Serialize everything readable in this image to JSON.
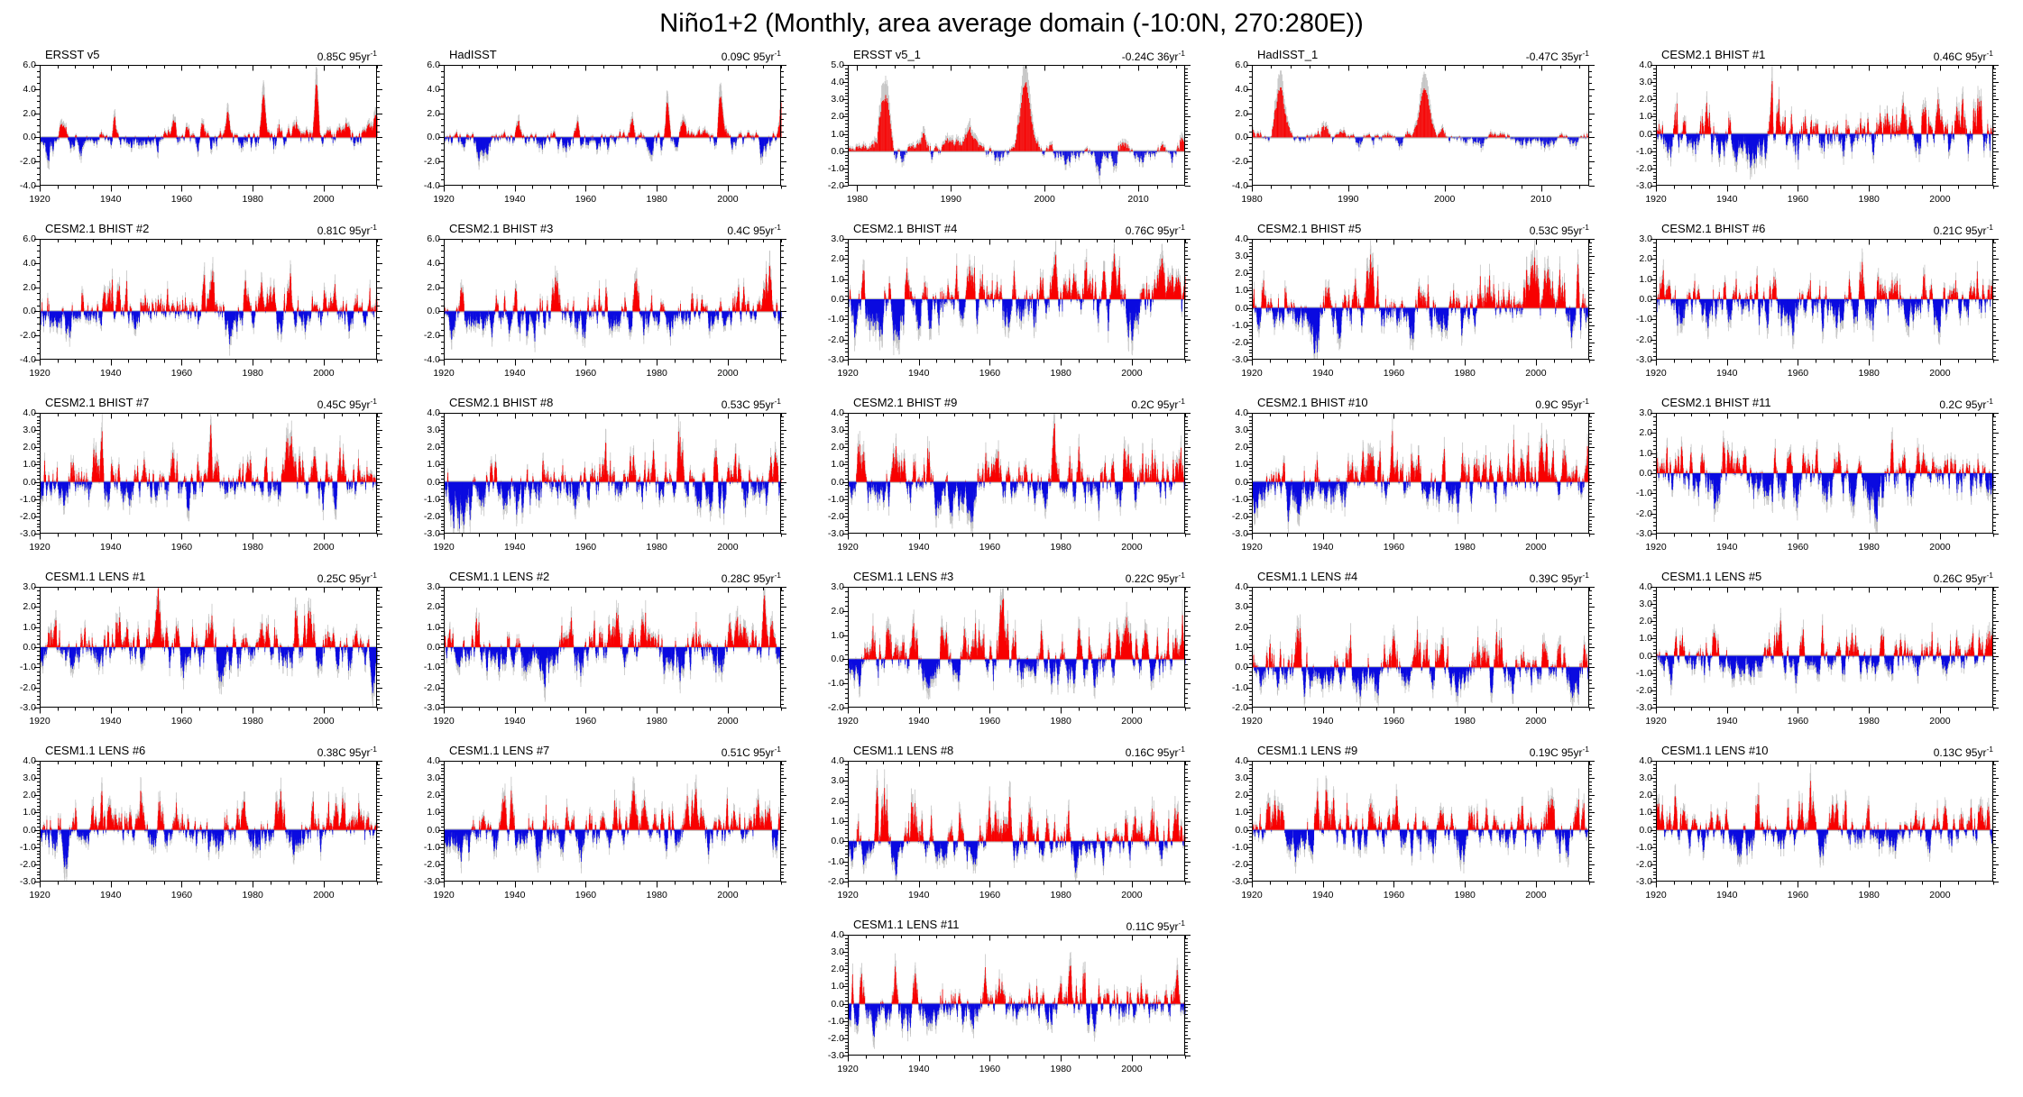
{
  "title": "Niño1+2 (Monthly, area average domain (-10:0N, 270:280E))",
  "colors": {
    "positive_anomaly": "#f80000",
    "negative_anomaly": "#0b0be0",
    "raw_monthly_envelope": "#c4c4c4",
    "zero_line": "#bdbdbd",
    "frame": "#000000",
    "text": "#000000",
    "background": "#ffffff"
  },
  "chart_data": {
    "type": "area",
    "description": "Grid of monthly SST anomaly time series (red = positive, blue = negative, gray = raw monthly envelope); linear trend printed top-right of each panel",
    "x_unit": "year",
    "y_unit": "C anomaly",
    "grid": {
      "columns": 5,
      "rows": 6,
      "last_row_panel_column": 3
    },
    "panels": [
      {
        "label": "ERSST v5",
        "trend": "0.85C 95yr",
        "trend_sup": "-1",
        "trend_value": 0.85,
        "xlim": [
          1920,
          2015
        ],
        "xticks": [
          1920,
          1940,
          1960,
          1980,
          2000
        ],
        "xminor": 5,
        "ylim": [
          -4,
          6
        ],
        "yticks": [
          6,
          4,
          2,
          0,
          -2,
          -4
        ],
        "yminor": 0.5,
        "seed": 3,
        "pos": 0.9,
        "neg": 1.7,
        "events": [
          [
            1925.9,
            1.2
          ],
          [
            1930.5,
            0.8
          ],
          [
            1941.0,
            1.9
          ],
          [
            1957.9,
            1.5
          ],
          [
            1965.9,
            1.2
          ],
          [
            1972.9,
            2.0
          ],
          [
            1976.5,
            0.9
          ],
          [
            1982.9,
            3.3
          ],
          [
            1987.3,
            1.2
          ],
          [
            1992.0,
            1.0
          ],
          [
            1997.9,
            4.0
          ],
          [
            2006.5,
            0.9
          ],
          [
            2014.9,
            2.4
          ]
        ]
      },
      {
        "label": "HadISST",
        "trend": "0.09C 95yr",
        "trend_sup": "-1",
        "trend_value": 0.09,
        "xlim": [
          1920,
          2015
        ],
        "xticks": [
          1920,
          1940,
          1960,
          1980,
          2000
        ],
        "xminor": 5,
        "ylim": [
          -4,
          6
        ],
        "yticks": [
          6,
          4,
          2,
          0,
          -2,
          -4
        ],
        "yminor": 0.5,
        "seed": 7,
        "pos": 0.9,
        "neg": 1.6,
        "events": [
          [
            1925.9,
            1.1
          ],
          [
            1941.0,
            1.6
          ],
          [
            1957.9,
            1.4
          ],
          [
            1972.9,
            1.6
          ],
          [
            1982.9,
            2.6
          ],
          [
            1987.3,
            1.1
          ],
          [
            1997.9,
            3.2
          ],
          [
            2014.9,
            3.0
          ]
        ]
      },
      {
        "label": "ERSST v5_1",
        "trend": "-0.24C 36yr",
        "trend_sup": "-1",
        "trend_value": -0.24,
        "xlim": [
          1979,
          2015
        ],
        "xticks": [
          1980,
          1990,
          2000,
          2010
        ],
        "xminor": 2,
        "ylim": [
          -2,
          5
        ],
        "yticks": [
          5,
          4,
          3,
          2,
          1,
          0,
          -1,
          -2
        ],
        "yminor": 0.2,
        "seed": 11,
        "pos": 0.8,
        "neg": 1.4,
        "events": [
          [
            1982.9,
            3.5
          ],
          [
            1987.3,
            1.1
          ],
          [
            1992.0,
            0.9
          ],
          [
            1997.9,
            3.8
          ],
          [
            2008.3,
            0.7
          ],
          [
            2014.9,
            1.3
          ]
        ]
      },
      {
        "label": "HadISST_1",
        "trend": "-0.47C 35yr",
        "trend_sup": "-1",
        "trend_value": -0.47,
        "xlim": [
          1980,
          2015
        ],
        "xticks": [
          1980,
          1990,
          2000,
          2010
        ],
        "xminor": 2,
        "ylim": [
          -4,
          6
        ],
        "yticks": [
          6,
          4,
          2,
          0,
          -2,
          -4
        ],
        "yminor": 0.5,
        "seed": 13,
        "pos": 0.9,
        "neg": 1.5,
        "events": [
          [
            1982.9,
            3.9
          ],
          [
            1987.3,
            0.9
          ],
          [
            1997.9,
            3.8
          ],
          [
            2014.9,
            0.9
          ]
        ]
      },
      {
        "label": "CESM2.1 BHIST #1",
        "trend": "0.46C 95yr",
        "trend_sup": "-1",
        "trend_value": 0.46,
        "xlim": [
          1920,
          2015
        ],
        "xticks": [
          1920,
          1940,
          1960,
          1980,
          2000
        ],
        "xminor": 5,
        "ylim": [
          -3,
          4
        ],
        "yticks": [
          4,
          3,
          2,
          1,
          0,
          -1,
          -2,
          -3
        ],
        "yminor": 0.2,
        "seed": 17,
        "pos": 2.8,
        "neg": 2.1
      },
      {
        "label": "CESM2.1 BHIST #2",
        "trend": "0.81C 95yr",
        "trend_sup": "-1",
        "trend_value": 0.81,
        "xlim": [
          1920,
          2015
        ],
        "xticks": [
          1920,
          1940,
          1960,
          1980,
          2000
        ],
        "xminor": 5,
        "ylim": [
          -4,
          6
        ],
        "yticks": [
          6,
          4,
          2,
          0,
          -2,
          -4
        ],
        "yminor": 0.5,
        "seed": 19,
        "pos": 3.6,
        "neg": 2.4
      },
      {
        "label": "CESM2.1 BHIST #3",
        "trend": "0.4C 95yr",
        "trend_sup": "-1",
        "trend_value": 0.4,
        "xlim": [
          1920,
          2015
        ],
        "xticks": [
          1920,
          1940,
          1960,
          1980,
          2000
        ],
        "xminor": 5,
        "ylim": [
          -4,
          6
        ],
        "yticks": [
          6,
          4,
          2,
          0,
          -2,
          -4
        ],
        "yminor": 0.5,
        "seed": 23,
        "pos": 3.2,
        "neg": 2.4
      },
      {
        "label": "CESM2.1 BHIST #4",
        "trend": "0.76C 95yr",
        "trend_sup": "-1",
        "trend_value": 0.76,
        "xlim": [
          1920,
          2015
        ],
        "xticks": [
          1920,
          1940,
          1960,
          1980,
          2000
        ],
        "xminor": 5,
        "ylim": [
          -3,
          3
        ],
        "yticks": [
          3,
          2,
          1,
          0,
          -1,
          -2,
          -3
        ],
        "yminor": 0.2,
        "seed": 29,
        "pos": 2.2,
        "neg": 2.2
      },
      {
        "label": "CESM2.1 BHIST #5",
        "trend": "0.53C 95yr",
        "trend_sup": "-1",
        "trend_value": 0.53,
        "xlim": [
          1920,
          2015
        ],
        "xticks": [
          1920,
          1940,
          1960,
          1980,
          2000
        ],
        "xminor": 5,
        "ylim": [
          -3,
          4
        ],
        "yticks": [
          4,
          3,
          2,
          1,
          0,
          -1,
          -2,
          -3
        ],
        "yminor": 0.2,
        "seed": 31,
        "pos": 2.9,
        "neg": 2.2
      },
      {
        "label": "CESM2.1 BHIST #6",
        "trend": "0.21C 95yr",
        "trend_sup": "-1",
        "trend_value": 0.21,
        "xlim": [
          1920,
          2015
        ],
        "xticks": [
          1920,
          1940,
          1960,
          1980,
          2000
        ],
        "xminor": 5,
        "ylim": [
          -3,
          3
        ],
        "yticks": [
          3,
          2,
          1,
          0,
          -1,
          -2,
          -3
        ],
        "yminor": 0.2,
        "seed": 37,
        "pos": 2.2,
        "neg": 1.9
      },
      {
        "label": "CESM2.1 BHIST #7",
        "trend": "0.45C 95yr",
        "trend_sup": "-1",
        "trend_value": 0.45,
        "xlim": [
          1920,
          2015
        ],
        "xticks": [
          1920,
          1940,
          1960,
          1980,
          2000
        ],
        "xminor": 5,
        "ylim": [
          -3,
          4
        ],
        "yticks": [
          4,
          3,
          2,
          1,
          0,
          -1,
          -2,
          -3
        ],
        "yminor": 0.2,
        "seed": 41,
        "pos": 2.6,
        "neg": 2.0
      },
      {
        "label": "CESM2.1 BHIST #8",
        "trend": "0.53C 95yr",
        "trend_sup": "-1",
        "trend_value": 0.53,
        "xlim": [
          1920,
          2015
        ],
        "xticks": [
          1920,
          1940,
          1960,
          1980,
          2000
        ],
        "xminor": 5,
        "ylim": [
          -3,
          4
        ],
        "yticks": [
          4,
          3,
          2,
          1,
          0,
          -1,
          -2,
          -3
        ],
        "yminor": 0.2,
        "seed": 43,
        "pos": 2.6,
        "neg": 2.3
      },
      {
        "label": "CESM2.1 BHIST #9",
        "trend": "0.2C 95yr",
        "trend_sup": "-1",
        "trend_value": 0.2,
        "xlim": [
          1920,
          2015
        ],
        "xticks": [
          1920,
          1940,
          1960,
          1980,
          2000
        ],
        "xminor": 5,
        "ylim": [
          -3,
          4
        ],
        "yticks": [
          4,
          3,
          2,
          1,
          0,
          -1,
          -2,
          -3
        ],
        "yminor": 0.2,
        "seed": 47,
        "pos": 2.8,
        "neg": 2.0
      },
      {
        "label": "CESM2.1 BHIST #10",
        "trend": "0.9C 95yr",
        "trend_sup": "-1",
        "trend_value": 0.9,
        "xlim": [
          1920,
          2015
        ],
        "xticks": [
          1920,
          1940,
          1960,
          1980,
          2000
        ],
        "xminor": 5,
        "ylim": [
          -3,
          4
        ],
        "yticks": [
          4,
          3,
          2,
          1,
          0,
          -1,
          -2,
          -3
        ],
        "yminor": 0.2,
        "seed": 53,
        "pos": 2.8,
        "neg": 2.0
      },
      {
        "label": "CESM2.1 BHIST #11",
        "trend": "0.2C 95yr",
        "trend_sup": "-1",
        "trend_value": 0.2,
        "xlim": [
          1920,
          2015
        ],
        "xticks": [
          1920,
          1940,
          1960,
          1980,
          2000
        ],
        "xminor": 5,
        "ylim": [
          -3,
          3
        ],
        "yticks": [
          3,
          2,
          1,
          0,
          -1,
          -2,
          -3
        ],
        "yminor": 0.2,
        "seed": 59,
        "pos": 2.0,
        "neg": 2.0
      },
      {
        "label": "CESM1.1 LENS #1",
        "trend": "0.25C 95yr",
        "trend_sup": "-1",
        "trend_value": 0.25,
        "xlim": [
          1920,
          2015
        ],
        "xticks": [
          1920,
          1940,
          1960,
          1980,
          2000
        ],
        "xminor": 5,
        "ylim": [
          -3,
          3
        ],
        "yticks": [
          3,
          2,
          1,
          0,
          -1,
          -2,
          -3
        ],
        "yminor": 0.2,
        "seed": 61,
        "pos": 2.2,
        "neg": 1.8
      },
      {
        "label": "CESM1.1 LENS #2",
        "trend": "0.28C 95yr",
        "trend_sup": "-1",
        "trend_value": 0.28,
        "xlim": [
          1920,
          2015
        ],
        "xticks": [
          1920,
          1940,
          1960,
          1980,
          2000
        ],
        "xminor": 5,
        "ylim": [
          -3,
          3
        ],
        "yticks": [
          3,
          2,
          1,
          0,
          -1,
          -2,
          -3
        ],
        "yminor": 0.2,
        "seed": 67,
        "pos": 2.1,
        "neg": 1.7
      },
      {
        "label": "CESM1.1 LENS #3",
        "trend": "0.22C 95yr",
        "trend_sup": "-1",
        "trend_value": 0.22,
        "xlim": [
          1920,
          2015
        ],
        "xticks": [
          1920,
          1940,
          1960,
          1980,
          2000
        ],
        "xminor": 5,
        "ylim": [
          -2,
          3
        ],
        "yticks": [
          3,
          2,
          1,
          0,
          -1,
          -2
        ],
        "yminor": 0.2,
        "seed": 71,
        "pos": 1.9,
        "neg": 1.4
      },
      {
        "label": "CESM1.1 LENS #4",
        "trend": "0.39C 95yr",
        "trend_sup": "-1",
        "trend_value": 0.39,
        "xlim": [
          1920,
          2015
        ],
        "xticks": [
          1920,
          1940,
          1960,
          1980,
          2000
        ],
        "xminor": 5,
        "ylim": [
          -2,
          4
        ],
        "yticks": [
          4,
          3,
          2,
          1,
          0,
          -1,
          -2
        ],
        "yminor": 0.2,
        "seed": 73,
        "pos": 2.6,
        "neg": 1.5
      },
      {
        "label": "CESM1.1 LENS #5",
        "trend": "0.26C 95yr",
        "trend_sup": "-1",
        "trend_value": 0.26,
        "xlim": [
          1920,
          2015
        ],
        "xticks": [
          1920,
          1940,
          1960,
          1980,
          2000
        ],
        "xminor": 5,
        "ylim": [
          -3,
          4
        ],
        "yticks": [
          4,
          3,
          2,
          1,
          0,
          -1,
          -2,
          -3
        ],
        "yminor": 0.2,
        "seed": 79,
        "pos": 2.5,
        "neg": 1.6
      },
      {
        "label": "CESM1.1 LENS #6",
        "trend": "0.38C 95yr",
        "trend_sup": "-1",
        "trend_value": 0.38,
        "xlim": [
          1920,
          2015
        ],
        "xticks": [
          1920,
          1940,
          1960,
          1980,
          2000
        ],
        "xminor": 5,
        "ylim": [
          -3,
          4
        ],
        "yticks": [
          4,
          3,
          2,
          1,
          0,
          -1,
          -2,
          -3
        ],
        "yminor": 0.2,
        "seed": 83,
        "pos": 2.5,
        "neg": 1.7
      },
      {
        "label": "CESM1.1 LENS #7",
        "trend": "0.51C 95yr",
        "trend_sup": "-1",
        "trend_value": 0.51,
        "xlim": [
          1920,
          2015
        ],
        "xticks": [
          1920,
          1940,
          1960,
          1980,
          2000
        ],
        "xminor": 5,
        "ylim": [
          -3,
          4
        ],
        "yticks": [
          4,
          3,
          2,
          1,
          0,
          -1,
          -2,
          -3
        ],
        "yminor": 0.2,
        "seed": 89,
        "pos": 2.4,
        "neg": 1.9
      },
      {
        "label": "CESM1.1 LENS #8",
        "trend": "0.16C 95yr",
        "trend_sup": "-1",
        "trend_value": 0.16,
        "xlim": [
          1920,
          2015
        ],
        "xticks": [
          1920,
          1940,
          1960,
          1980,
          2000
        ],
        "xminor": 5,
        "ylim": [
          -2,
          4
        ],
        "yticks": [
          4,
          3,
          2,
          1,
          0,
          -1,
          -2
        ],
        "yminor": 0.2,
        "seed": 97,
        "pos": 2.5,
        "neg": 1.4
      },
      {
        "label": "CESM1.1 LENS #9",
        "trend": "0.19C 95yr",
        "trend_sup": "-1",
        "trend_value": 0.19,
        "xlim": [
          1920,
          2015
        ],
        "xticks": [
          1920,
          1940,
          1960,
          1980,
          2000
        ],
        "xminor": 5,
        "ylim": [
          -3,
          4
        ],
        "yticks": [
          4,
          3,
          2,
          1,
          0,
          -1,
          -2,
          -3
        ],
        "yminor": 0.2,
        "seed": 101,
        "pos": 2.6,
        "neg": 1.8
      },
      {
        "label": "CESM1.1 LENS #10",
        "trend": "0.13C 95yr",
        "trend_sup": "-1",
        "trend_value": 0.13,
        "xlim": [
          1920,
          2015
        ],
        "xticks": [
          1920,
          1940,
          1960,
          1980,
          2000
        ],
        "xminor": 5,
        "ylim": [
          -3,
          4
        ],
        "yticks": [
          4,
          3,
          2,
          1,
          0,
          -1,
          -2,
          -3
        ],
        "yminor": 0.2,
        "seed": 103,
        "pos": 2.6,
        "neg": 1.7
      },
      {
        "label": "CESM1.1 LENS #11",
        "trend": "0.11C 95yr",
        "trend_sup": "-1",
        "trend_value": 0.11,
        "xlim": [
          1920,
          2015
        ],
        "xticks": [
          1920,
          1940,
          1960,
          1980,
          2000
        ],
        "xminor": 5,
        "ylim": [
          -3,
          4
        ],
        "yticks": [
          4,
          3,
          2,
          1,
          0,
          -1,
          -2,
          -3
        ],
        "yminor": 0.2,
        "seed": 107,
        "pos": 2.5,
        "neg": 1.7
      }
    ]
  }
}
